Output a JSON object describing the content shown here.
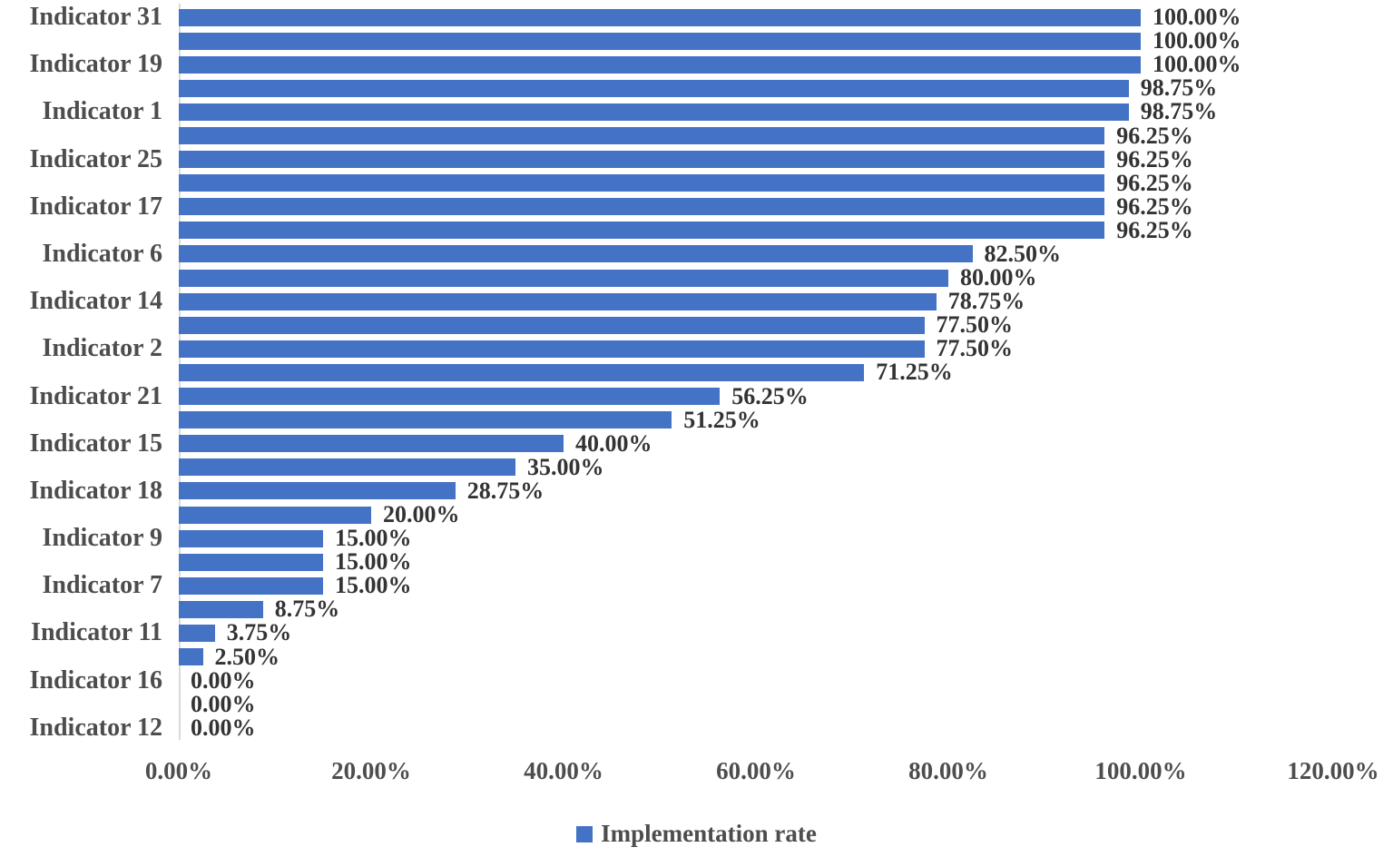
{
  "chart_data": {
    "type": "bar",
    "orientation": "horizontal",
    "title": "",
    "xlabel": "",
    "ylabel": "",
    "xlim": [
      0,
      120
    ],
    "grid": false,
    "legend_position": "bottom-center",
    "legend": "Implementation rate",
    "bar_color": "#4472C4",
    "axis_line_color": "#d9d9d9",
    "label_color": "#4d4d4d",
    "value_label_color": "#333333",
    "x_ticks": [
      {
        "label": "0.00%",
        "value": 0
      },
      {
        "label": "20.00%",
        "value": 20
      },
      {
        "label": "40.00%",
        "value": 40
      },
      {
        "label": "60.00%",
        "value": 60
      },
      {
        "label": "80.00%",
        "value": 80
      },
      {
        "label": "100.00%",
        "value": 100
      },
      {
        "label": "120.00%",
        "value": 120
      }
    ],
    "rows": [
      {
        "label": "Indicator 31",
        "value": 100,
        "value_label": "100.00%"
      },
      {
        "label": "",
        "value": 100,
        "value_label": "100.00%"
      },
      {
        "label": "Indicator 19",
        "value": 100,
        "value_label": "100.00%"
      },
      {
        "label": "",
        "value": 98.75,
        "value_label": "98.75%"
      },
      {
        "label": "Indicator 1",
        "value": 98.75,
        "value_label": "98.75%"
      },
      {
        "label": "",
        "value": 96.25,
        "value_label": "96.25%"
      },
      {
        "label": "Indicator 25",
        "value": 96.25,
        "value_label": "96.25%"
      },
      {
        "label": "",
        "value": 96.25,
        "value_label": "96.25%"
      },
      {
        "label": "Indicator 17",
        "value": 96.25,
        "value_label": "96.25%"
      },
      {
        "label": "",
        "value": 96.25,
        "value_label": "96.25%"
      },
      {
        "label": "Indicator 6",
        "value": 82.5,
        "value_label": "82.50%"
      },
      {
        "label": "",
        "value": 80,
        "value_label": "80.00%"
      },
      {
        "label": "Indicator 14",
        "value": 78.75,
        "value_label": "78.75%"
      },
      {
        "label": "",
        "value": 77.5,
        "value_label": "77.50%"
      },
      {
        "label": "Indicator 2",
        "value": 77.5,
        "value_label": "77.50%"
      },
      {
        "label": "",
        "value": 71.25,
        "value_label": "71.25%"
      },
      {
        "label": "Indicator 21",
        "value": 56.25,
        "value_label": "56.25%"
      },
      {
        "label": "",
        "value": 51.25,
        "value_label": "51.25%"
      },
      {
        "label": "Indicator 15",
        "value": 40,
        "value_label": "40.00%"
      },
      {
        "label": "",
        "value": 35,
        "value_label": "35.00%"
      },
      {
        "label": "Indicator 18",
        "value": 28.75,
        "value_label": "28.75%"
      },
      {
        "label": "",
        "value": 20,
        "value_label": "20.00%"
      },
      {
        "label": "Indicator 9",
        "value": 15,
        "value_label": "15.00%"
      },
      {
        "label": "",
        "value": 15,
        "value_label": "15.00%"
      },
      {
        "label": "Indicator 7",
        "value": 15,
        "value_label": "15.00%"
      },
      {
        "label": "",
        "value": 8.75,
        "value_label": "8.75%"
      },
      {
        "label": "Indicator 11",
        "value": 3.75,
        "value_label": "3.75%"
      },
      {
        "label": "",
        "value": 2.5,
        "value_label": "2.50%"
      },
      {
        "label": "Indicator 16",
        "value": 0,
        "value_label": "0.00%"
      },
      {
        "label": "",
        "value": 0,
        "value_label": "0.00%"
      },
      {
        "label": "Indicator 12",
        "value": 0,
        "value_label": "0.00%"
      }
    ]
  }
}
